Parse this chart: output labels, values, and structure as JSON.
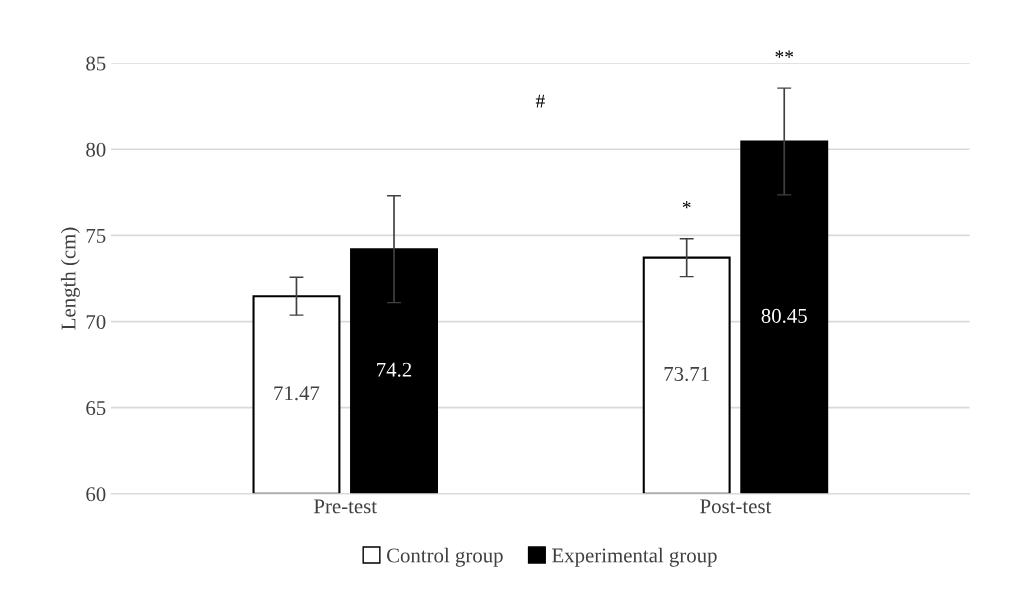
{
  "chart_data": {
    "type": "bar",
    "ylabel": "Length (cm)",
    "categories": [
      "Pre-test",
      "Post-test"
    ],
    "series": [
      {
        "name": "Control group",
        "color": "#ffffff",
        "values": [
          71.47,
          73.71
        ],
        "errors": [
          1.1,
          1.1
        ]
      },
      {
        "name": "Experimental group",
        "color": "#000000",
        "values": [
          74.2,
          80.45
        ],
        "errors": [
          3.1,
          3.1
        ]
      }
    ],
    "ylim": [
      60,
      85
    ],
    "yticks": [
      60,
      65,
      70,
      75,
      80,
      85
    ],
    "grid": "y",
    "legend": "bottom",
    "data_labels": true,
    "annotations": [
      "#",
      "*",
      "**"
    ]
  }
}
